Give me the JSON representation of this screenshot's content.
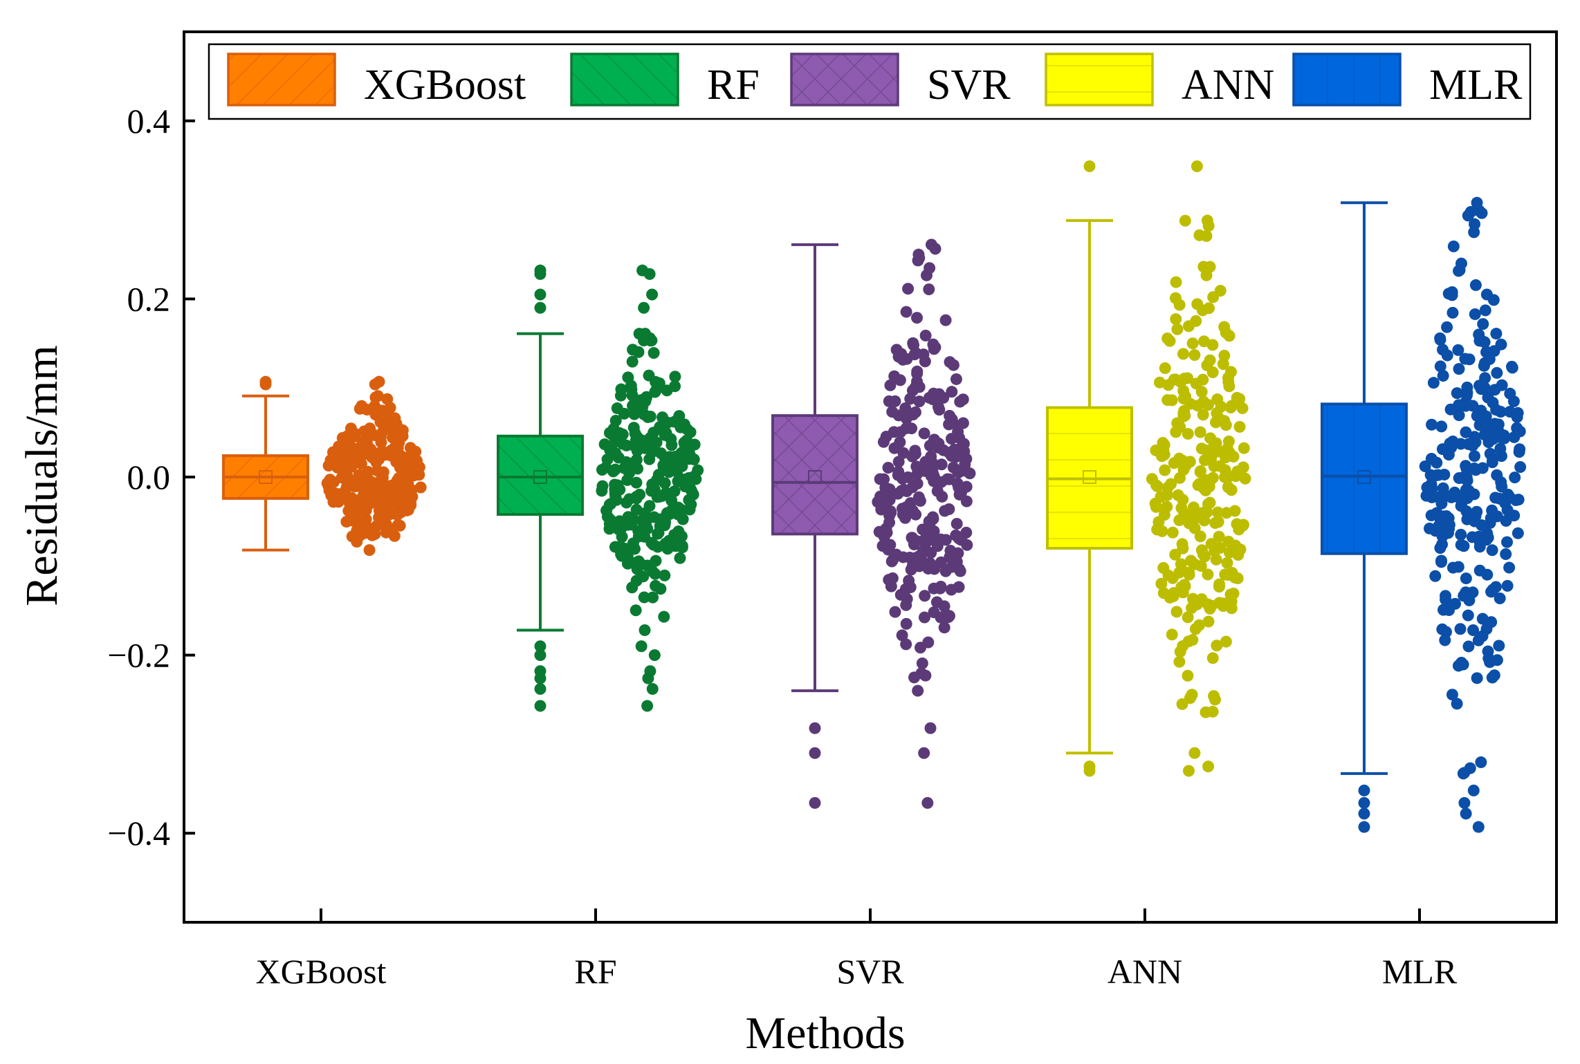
{
  "chart_data": {
    "type": "box",
    "title": "",
    "xlabel": "Methods",
    "ylabel": "Residuals/mm",
    "ylim": [
      -0.5,
      0.5
    ],
    "yticks": [
      -0.4,
      -0.2,
      0.0,
      0.2,
      0.4
    ],
    "ytick_labels": [
      "−0.4",
      "−0.2",
      "0.0",
      "0.2",
      "0.4"
    ],
    "categories": [
      "XGBoost",
      "RF",
      "SVR",
      "ANN",
      "MLR"
    ],
    "legend": [
      "XGBoost",
      "RF",
      "SVR",
      "ANN",
      "MLR"
    ],
    "legend_position": "top",
    "series": [
      {
        "name": "XGBoost",
        "color": "#FF7F00",
        "edge": "#D95F0E",
        "point_color": "#D95F0E",
        "pattern": "diagonal",
        "whisker_low": -0.082,
        "q1": -0.024,
        "median": 0.0,
        "mean": 0.0,
        "q3": 0.024,
        "whisker_high": 0.091,
        "outliers": [
          0.104,
          0.107
        ],
        "spread": 0.045
      },
      {
        "name": "RF",
        "color": "#00B050",
        "edge": "#0A7A32",
        "point_color": "#0A7A32",
        "pattern": "back-diagonal",
        "whisker_low": -0.172,
        "q1": -0.042,
        "median": 0.0,
        "mean": 0.0,
        "q3": 0.046,
        "whisker_high": 0.161,
        "outliers": [
          0.232,
          0.228,
          0.205,
          0.19,
          -0.19,
          -0.2,
          -0.218,
          -0.226,
          -0.238,
          -0.257
        ],
        "spread": 0.055
      },
      {
        "name": "SVR",
        "color": "#8E5BB0",
        "edge": "#5C3A78",
        "point_color": "#5C3A78",
        "pattern": "cross",
        "whisker_low": -0.24,
        "q1": -0.064,
        "median": -0.006,
        "mean": 0.0,
        "q3": 0.069,
        "whisker_high": 0.261,
        "outliers": [
          -0.282,
          -0.31,
          -0.366
        ],
        "spread": 0.085
      },
      {
        "name": "ANN",
        "color": "#FFFF00",
        "edge": "#BFBF00",
        "point_color": "#BDBD00",
        "pattern": "horizontal",
        "whisker_low": -0.31,
        "q1": -0.08,
        "median": -0.002,
        "mean": 0.0,
        "q3": 0.078,
        "whisker_high": 0.288,
        "outliers": [
          0.349,
          -0.325,
          -0.33
        ],
        "spread": 0.11
      },
      {
        "name": "MLR",
        "color": "#0066DD",
        "edge": "#0B4FA8",
        "point_color": "#0B4FA8",
        "pattern": "vertical",
        "whisker_low": -0.333,
        "q1": -0.086,
        "median": 0.001,
        "mean": 0.0,
        "q3": 0.082,
        "whisker_high": 0.308,
        "outliers": [
          -0.352,
          -0.366,
          -0.378,
          -0.393
        ],
        "spread": 0.13
      }
    ]
  }
}
